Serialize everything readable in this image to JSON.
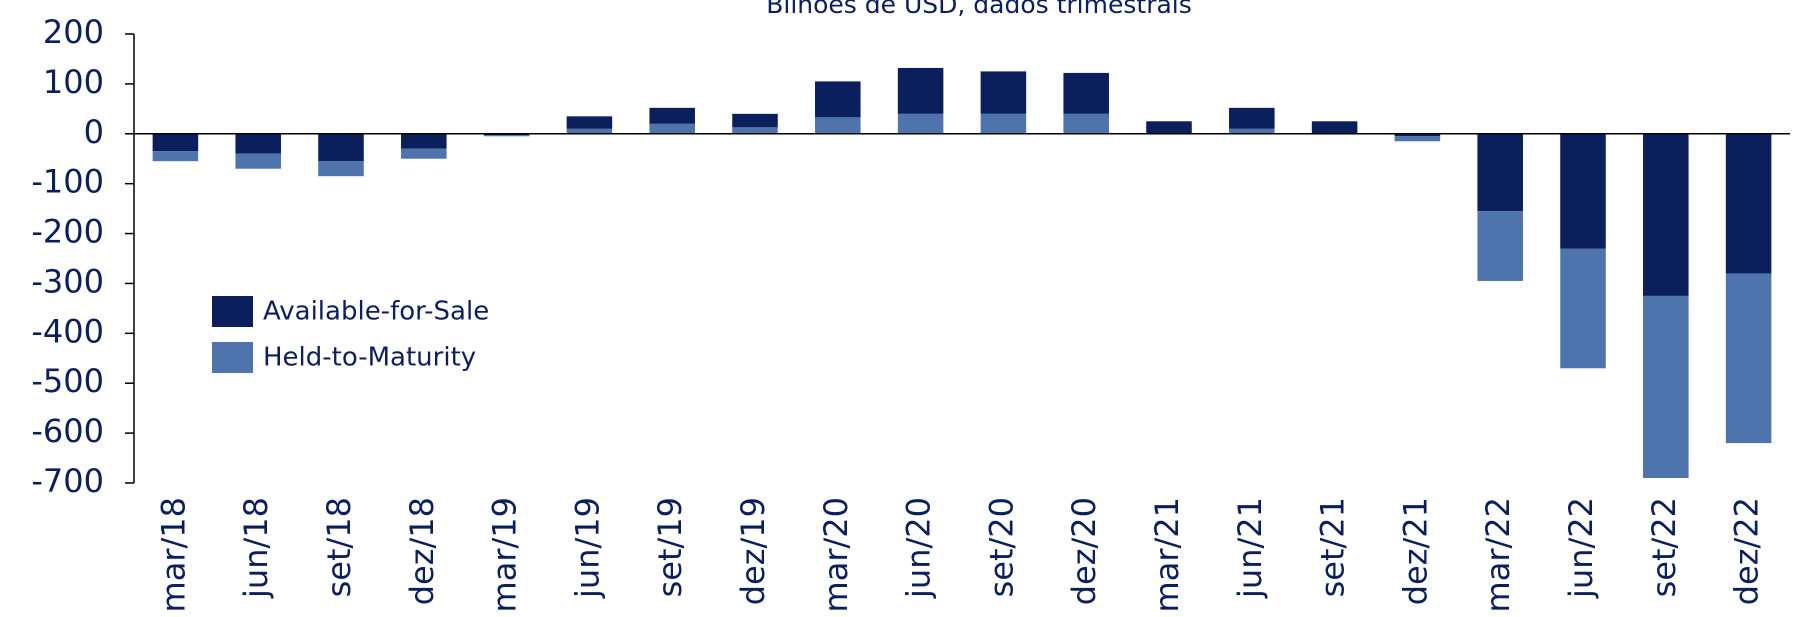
{
  "chart_data": {
    "type": "bar",
    "stacked": true,
    "subtitle": "Bilhões de USD, dados trimestrais",
    "categories": [
      "mar/18",
      "jun/18",
      "set/18",
      "dez/18",
      "mar/19",
      "jun/19",
      "set/19",
      "dez/19",
      "mar/20",
      "jun/20",
      "set/20",
      "dez/20",
      "mar/21",
      "jun/21",
      "set/21",
      "dez/21",
      "mar/22",
      "jun/22",
      "set/22",
      "dez/22"
    ],
    "series": [
      {
        "name": "Available-for-Sale",
        "color": "#0b1f5c",
        "values": [
          -35,
          -40,
          -55,
          -30,
          -3,
          25,
          32,
          27,
          72,
          92,
          85,
          82,
          25,
          42,
          25,
          -5,
          -155,
          -230,
          -325,
          -280
        ]
      },
      {
        "name": "Held-to-Maturity",
        "color": "#4f73ad",
        "values": [
          -20,
          -30,
          -30,
          -20,
          -2,
          10,
          20,
          13,
          33,
          40,
          40,
          40,
          0,
          10,
          0,
          -10,
          -140,
          -240,
          -365,
          -340
        ]
      }
    ],
    "ylim": [
      -700,
      200
    ],
    "yticks": [
      -700,
      -600,
      -500,
      -400,
      -300,
      -200,
      -100,
      0,
      100,
      200
    ],
    "legend": "lower left"
  }
}
